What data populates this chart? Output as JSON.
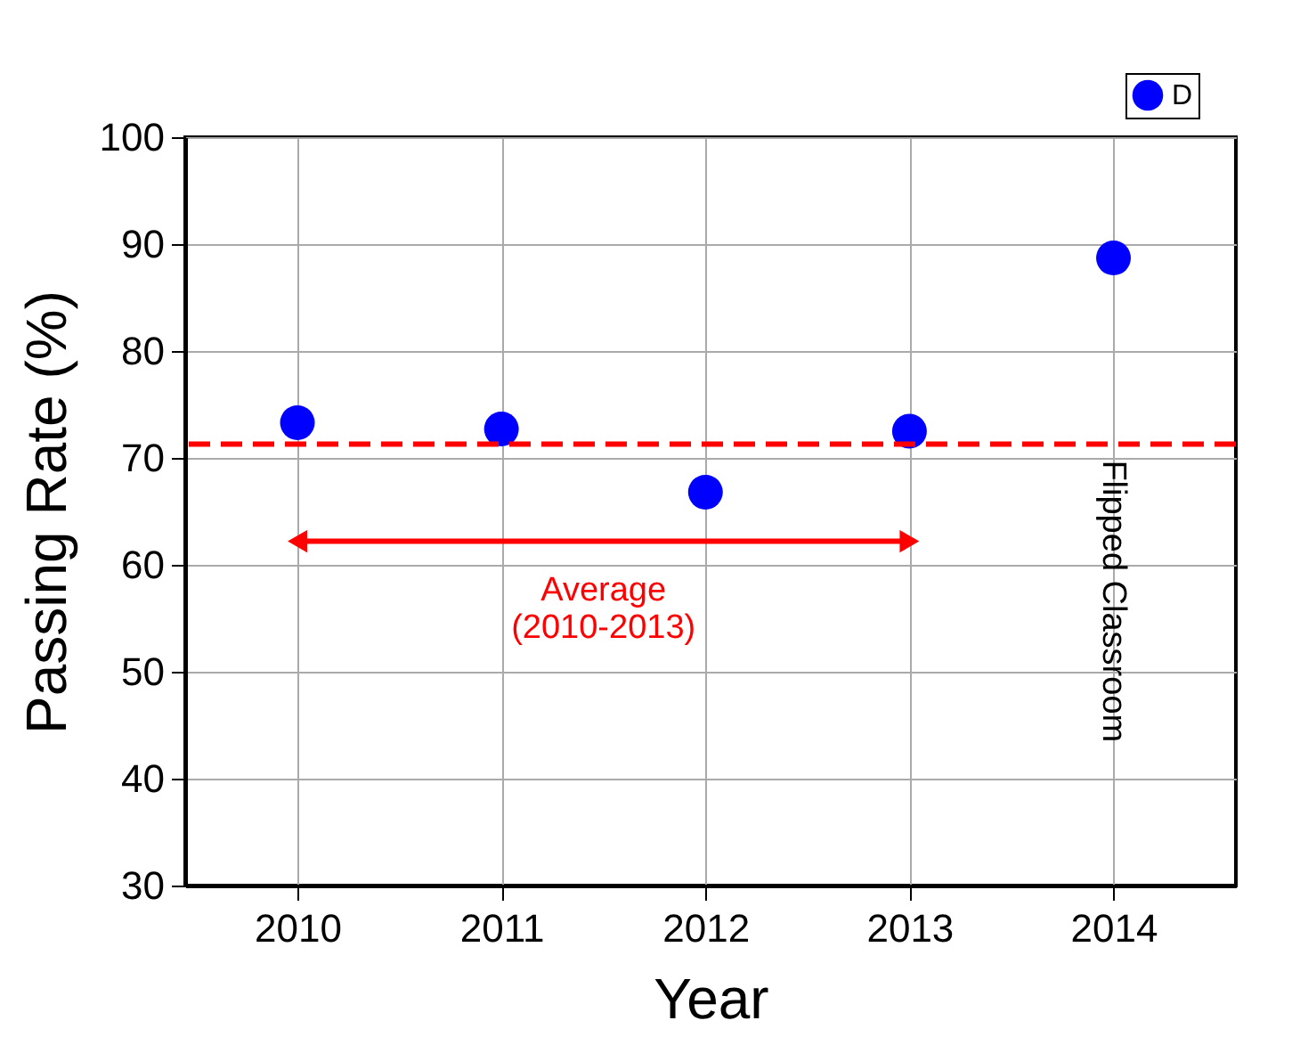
{
  "chart_data": {
    "type": "scatter",
    "xlabel": "Year",
    "ylabel": "Passing Rate (%)",
    "x": [
      2010,
      2011,
      2012,
      2013,
      2014
    ],
    "series": [
      {
        "name": "D",
        "color": "#0000ff",
        "values": [
          73.3,
          72.7,
          66.8,
          72.5,
          88.7
        ]
      }
    ],
    "xlim": [
      2009.45,
      2014.6
    ],
    "xticks": [
      2010,
      2011,
      2012,
      2013,
      2014
    ],
    "ylim": [
      30,
      100
    ],
    "yticks": [
      30,
      40,
      50,
      60,
      70,
      80,
      90,
      100
    ],
    "ref_lines": [
      {
        "axis": "y",
        "value": 71.3,
        "color": "#ff0000",
        "line_style": "dashed"
      }
    ],
    "annotations": [
      "Average\n(2010-2013)",
      "Flipped Classroom"
    ],
    "grid": true,
    "legend": "top right",
    "marker": "circle"
  }
}
